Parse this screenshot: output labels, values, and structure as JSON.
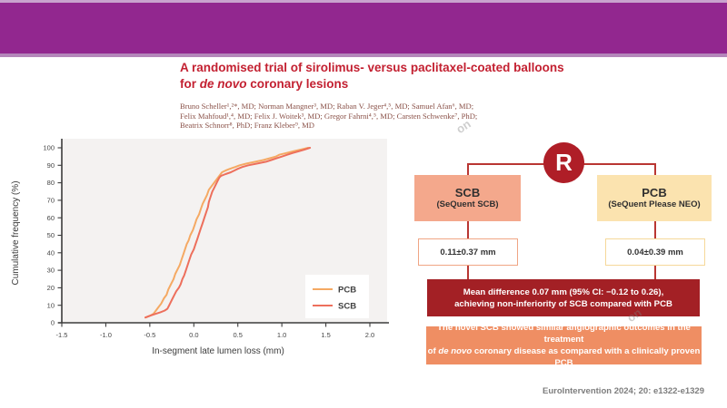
{
  "banner": {
    "color": "#92278F"
  },
  "title": {
    "line1": "A randomised trial of sirolimus- versus paclitaxel-coated balloons",
    "line2_pre": "for ",
    "line2_italic": "de novo",
    "line2_post": " coronary lesions"
  },
  "authors": {
    "line1": "Bruno Scheller¹,²*, MD; Norman Mangner³, MD; Raban V. Jeger⁴,⁵, MD; Samuel Afan⁶, MD;",
    "line2": "Felix Mahfoud¹,⁴, MD; Felix J. Woitek³, MD; Gregor Fahrni⁴,⁵, MD; Carsten Schwenke⁷, PhD;",
    "line3": "Beatrix Schnorr⁸, PhD; Franz Kleber⁹, MD"
  },
  "chart_data": {
    "type": "line",
    "title": "",
    "xlabel": "In-segment late lumen loss (mm)",
    "ylabel": "Cumulative frequency (%)",
    "xlim": [
      -1.5,
      2.0
    ],
    "ylim": [
      0,
      100
    ],
    "grid": false,
    "legend_position": "bottom-right",
    "x_ticks": [
      -1.5,
      -1.0,
      -0.5,
      0.0,
      0.5,
      1.0,
      1.5,
      2.0
    ],
    "x_tick_labels": [
      "-1.5",
      "-1.0",
      "-0.5",
      "0.0",
      "0.5",
      "1.0",
      "1.5",
      "2.0"
    ],
    "y_ticks": [
      0,
      10,
      20,
      30,
      40,
      50,
      60,
      70,
      80,
      90,
      100
    ],
    "series": [
      {
        "name": "PCB",
        "color": "#F5A963",
        "points": [
          [
            -0.55,
            3
          ],
          [
            -0.5,
            4
          ],
          [
            -0.46,
            5
          ],
          [
            -0.43,
            7
          ],
          [
            -0.4,
            9
          ],
          [
            -0.37,
            11
          ],
          [
            -0.34,
            14
          ],
          [
            -0.31,
            16
          ],
          [
            -0.29,
            19
          ],
          [
            -0.26,
            22
          ],
          [
            -0.23,
            25
          ],
          [
            -0.21,
            28
          ],
          [
            -0.19,
            30
          ],
          [
            -0.16,
            33
          ],
          [
            -0.14,
            36
          ],
          [
            -0.12,
            39
          ],
          [
            -0.1,
            42
          ],
          [
            -0.08,
            45
          ],
          [
            -0.06,
            47
          ],
          [
            -0.04,
            50
          ],
          [
            -0.01,
            53
          ],
          [
            0.01,
            56
          ],
          [
            0.03,
            59
          ],
          [
            0.06,
            62
          ],
          [
            0.08,
            65
          ],
          [
            0.1,
            68
          ],
          [
            0.13,
            71
          ],
          [
            0.15,
            73
          ],
          [
            0.17,
            76
          ],
          [
            0.2,
            78
          ],
          [
            0.23,
            80
          ],
          [
            0.26,
            82
          ],
          [
            0.29,
            84
          ],
          [
            0.32,
            86
          ],
          [
            0.36,
            87
          ],
          [
            0.41,
            88
          ],
          [
            0.47,
            89
          ],
          [
            0.52,
            90
          ],
          [
            0.6,
            91
          ],
          [
            0.7,
            92
          ],
          [
            0.79,
            93
          ],
          [
            0.86,
            94
          ],
          [
            0.93,
            95
          ],
          [
            0.97,
            96
          ],
          [
            1.05,
            97
          ],
          [
            1.13,
            98
          ],
          [
            1.22,
            99
          ],
          [
            1.3,
            100
          ]
        ]
      },
      {
        "name": "SCB",
        "color": "#ED6F5C",
        "points": [
          [
            -0.55,
            3
          ],
          [
            -0.5,
            4
          ],
          [
            -0.44,
            5
          ],
          [
            -0.38,
            6
          ],
          [
            -0.33,
            7
          ],
          [
            -0.3,
            8
          ],
          [
            -0.28,
            10
          ],
          [
            -0.26,
            12
          ],
          [
            -0.24,
            14
          ],
          [
            -0.22,
            16
          ],
          [
            -0.2,
            18
          ],
          [
            -0.17,
            20
          ],
          [
            -0.15,
            22
          ],
          [
            -0.13,
            25
          ],
          [
            -0.11,
            27
          ],
          [
            -0.09,
            30
          ],
          [
            -0.07,
            33
          ],
          [
            -0.05,
            36
          ],
          [
            -0.03,
            39
          ],
          [
            0.0,
            42
          ],
          [
            0.02,
            45
          ],
          [
            0.04,
            48
          ],
          [
            0.06,
            51
          ],
          [
            0.08,
            54
          ],
          [
            0.1,
            57
          ],
          [
            0.12,
            60
          ],
          [
            0.14,
            63
          ],
          [
            0.16,
            66
          ],
          [
            0.17,
            69
          ],
          [
            0.19,
            72
          ],
          [
            0.21,
            75
          ],
          [
            0.23,
            77
          ],
          [
            0.25,
            79
          ],
          [
            0.27,
            81
          ],
          [
            0.29,
            83
          ],
          [
            0.31,
            84
          ],
          [
            0.36,
            85
          ],
          [
            0.42,
            86
          ],
          [
            0.46,
            87
          ],
          [
            0.5,
            88
          ],
          [
            0.55,
            89
          ],
          [
            0.62,
            90
          ],
          [
            0.72,
            91
          ],
          [
            0.82,
            92
          ],
          [
            0.88,
            93
          ],
          [
            0.94,
            94
          ],
          [
            1.0,
            95
          ],
          [
            1.06,
            96
          ],
          [
            1.12,
            97
          ],
          [
            1.19,
            98
          ],
          [
            1.26,
            99
          ],
          [
            1.32,
            100
          ]
        ]
      }
    ]
  },
  "diagram": {
    "randomization_label": "R",
    "scb_box": {
      "name": "SCB",
      "sub": "(SeQuent SCB)",
      "fill": "#F4A88C"
    },
    "pcb_box": {
      "name": "PCB",
      "sub": "(SeQuent Please NEO)",
      "fill": "#FBE3AF"
    },
    "scb_value": "0.11±0.37 mm",
    "pcb_value": "0.04±0.39 mm",
    "result": {
      "line1": "Mean difference 0.07 mm (95% CI: −0.12 to 0.26),",
      "line2": "achieving non-inferiority of SCB compared with PCB",
      "fill": "#A32025"
    },
    "conclusion": {
      "line1": "The novel SCB showed similar angiographic outcomes in the treatment",
      "line2_pre": "of ",
      "line2_italic": "de novo",
      "line2_post": " coronary disease as compared with a clinically proven PCB",
      "fill": "#EF8E63"
    }
  },
  "watermarks": {
    "fragment1": "on",
    "fragment2": "on"
  },
  "citation": "EuroIntervention 2024; 20: e1322-e1329"
}
